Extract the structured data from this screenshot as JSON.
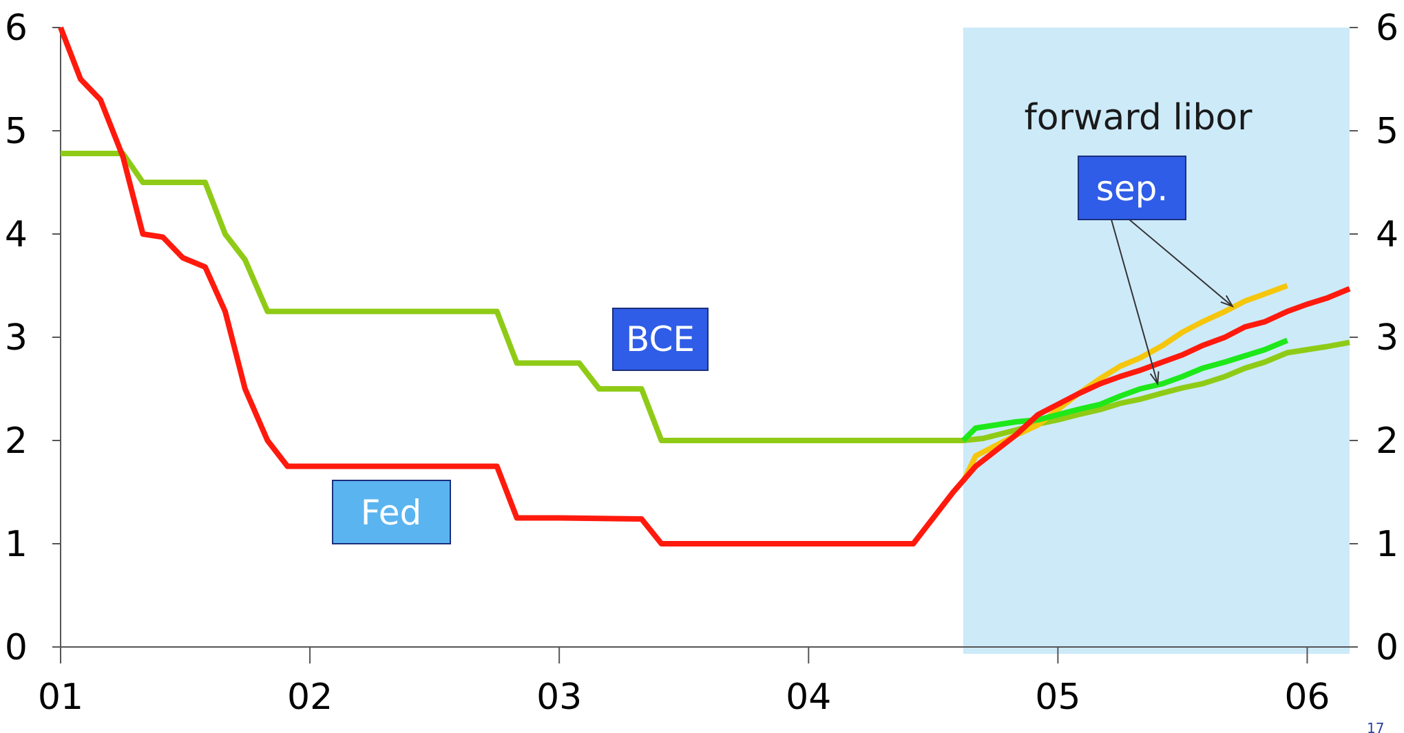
{
  "chart_data": {
    "type": "line",
    "title": "",
    "xlabel": "",
    "ylabel": "",
    "x_ticks": [
      "01",
      "02",
      "03",
      "04",
      "05",
      "06"
    ],
    "xlim": [
      2001.0,
      2006.17
    ],
    "ylim": [
      0,
      6
    ],
    "y_ticks": [
      0,
      1,
      2,
      3,
      4,
      5,
      6
    ],
    "y_axis_right": true,
    "grid": false,
    "shaded_region": {
      "from": 2004.62,
      "to": 2006.17,
      "color": "#cdeaf9",
      "label": "forward libor"
    },
    "annotations": [
      {
        "text": "BCE",
        "near_series": "BCE",
        "box_color": "#2f5de8"
      },
      {
        "text": "Fed",
        "near_series": "Fed",
        "box_color": "#5ab4f0"
      },
      {
        "text": "sep.",
        "box_color": "#2f5de8",
        "arrows_to": [
          [
            2005.4,
            2.55
          ],
          [
            2005.7,
            3.3
          ]
        ]
      }
    ],
    "series": [
      {
        "name": "Fed",
        "color": "#ff1a0d",
        "points": [
          [
            2001.0,
            6.0
          ],
          [
            2001.08,
            5.5
          ],
          [
            2001.16,
            5.3
          ],
          [
            2001.25,
            4.75
          ],
          [
            2001.33,
            4.0
          ],
          [
            2001.41,
            3.97
          ],
          [
            2001.49,
            3.77
          ],
          [
            2001.58,
            3.68
          ],
          [
            2001.66,
            3.25
          ],
          [
            2001.74,
            2.5
          ],
          [
            2001.83,
            2.0
          ],
          [
            2001.91,
            1.75
          ],
          [
            2002.0,
            1.75
          ],
          [
            2002.5,
            1.75
          ],
          [
            2002.75,
            1.75
          ],
          [
            2002.83,
            1.25
          ],
          [
            2003.0,
            1.25
          ],
          [
            2003.33,
            1.24
          ],
          [
            2003.41,
            1.0
          ],
          [
            2004.0,
            1.0
          ],
          [
            2004.42,
            1.0
          ],
          [
            2004.5,
            1.25
          ],
          [
            2004.58,
            1.5
          ],
          [
            2004.67,
            1.75
          ],
          [
            2004.75,
            1.9
          ],
          [
            2004.83,
            2.05
          ],
          [
            2004.92,
            2.25
          ],
          [
            2005.0,
            2.35
          ],
          [
            2005.08,
            2.45
          ],
          [
            2005.17,
            2.55
          ],
          [
            2005.25,
            2.62
          ],
          [
            2005.33,
            2.68
          ],
          [
            2005.42,
            2.76
          ],
          [
            2005.5,
            2.83
          ],
          [
            2005.58,
            2.92
          ],
          [
            2005.67,
            3.0
          ],
          [
            2005.75,
            3.1
          ],
          [
            2005.83,
            3.15
          ],
          [
            2005.92,
            3.25
          ],
          [
            2006.0,
            3.32
          ],
          [
            2006.08,
            3.38
          ],
          [
            2006.17,
            3.47
          ]
        ]
      },
      {
        "name": "BCE",
        "color": "#8fcb16",
        "points": [
          [
            2001.0,
            4.78
          ],
          [
            2001.25,
            4.78
          ],
          [
            2001.33,
            4.5
          ],
          [
            2001.58,
            4.5
          ],
          [
            2001.66,
            4.0
          ],
          [
            2001.74,
            3.75
          ],
          [
            2001.83,
            3.25
          ],
          [
            2002.0,
            3.25
          ],
          [
            2002.5,
            3.25
          ],
          [
            2002.75,
            3.25
          ],
          [
            2002.83,
            2.75
          ],
          [
            2003.0,
            2.75
          ],
          [
            2003.08,
            2.75
          ],
          [
            2003.16,
            2.5
          ],
          [
            2003.33,
            2.5
          ],
          [
            2003.41,
            2.0
          ],
          [
            2004.0,
            2.0
          ],
          [
            2004.62,
            2.0
          ],
          [
            2004.7,
            2.02
          ],
          [
            2004.83,
            2.1
          ],
          [
            2004.92,
            2.16
          ],
          [
            2005.0,
            2.2
          ],
          [
            2005.08,
            2.25
          ],
          [
            2005.17,
            2.3
          ],
          [
            2005.25,
            2.36
          ],
          [
            2005.33,
            2.4
          ],
          [
            2005.42,
            2.46
          ],
          [
            2005.5,
            2.51
          ],
          [
            2005.58,
            2.55
          ],
          [
            2005.67,
            2.62
          ],
          [
            2005.75,
            2.7
          ],
          [
            2005.83,
            2.76
          ],
          [
            2005.92,
            2.85
          ],
          [
            2006.0,
            2.88
          ],
          [
            2006.08,
            2.91
          ],
          [
            2006.17,
            2.95
          ]
        ]
      },
      {
        "name": "",
        "color": "#f5c60c",
        "points": [
          [
            2004.62,
            1.6
          ],
          [
            2004.67,
            1.85
          ],
          [
            2004.75,
            1.95
          ],
          [
            2004.83,
            2.05
          ],
          [
            2004.92,
            2.15
          ],
          [
            2005.0,
            2.3
          ],
          [
            2005.08,
            2.45
          ],
          [
            2005.17,
            2.6
          ],
          [
            2005.25,
            2.72
          ],
          [
            2005.33,
            2.8
          ],
          [
            2005.42,
            2.92
          ],
          [
            2005.5,
            3.05
          ],
          [
            2005.58,
            3.15
          ],
          [
            2005.67,
            3.25
          ],
          [
            2005.75,
            3.35
          ],
          [
            2005.83,
            3.42
          ],
          [
            2005.92,
            3.5
          ]
        ]
      },
      {
        "name": "",
        "color": "#1ee81a",
        "points": [
          [
            2004.62,
            2.0
          ],
          [
            2004.67,
            2.12
          ],
          [
            2004.75,
            2.15
          ],
          [
            2004.83,
            2.18
          ],
          [
            2004.92,
            2.2
          ],
          [
            2005.0,
            2.25
          ],
          [
            2005.08,
            2.3
          ],
          [
            2005.17,
            2.35
          ],
          [
            2005.25,
            2.43
          ],
          [
            2005.33,
            2.5
          ],
          [
            2005.42,
            2.55
          ],
          [
            2005.5,
            2.62
          ],
          [
            2005.58,
            2.7
          ],
          [
            2005.67,
            2.76
          ],
          [
            2005.75,
            2.82
          ],
          [
            2005.83,
            2.88
          ],
          [
            2005.92,
            2.97
          ]
        ]
      }
    ],
    "page_number": "17"
  }
}
